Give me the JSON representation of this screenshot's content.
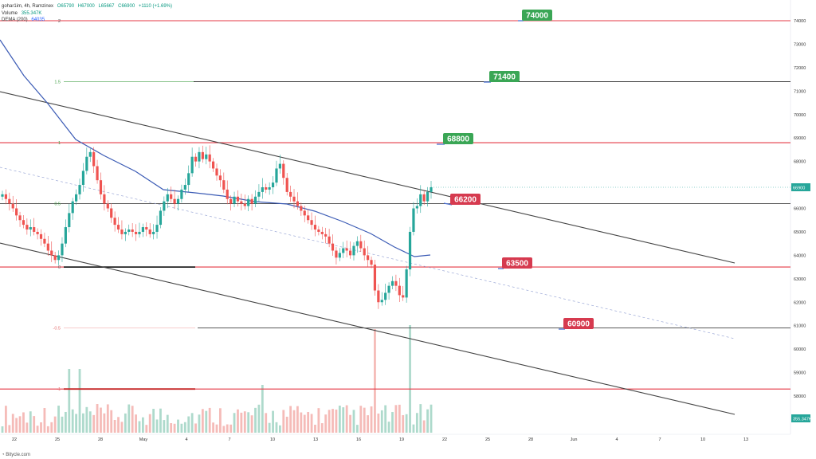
{
  "legend": {
    "symbol": "gohar1im, 4h, Ramzinex",
    "open": "O65790",
    "high": "H67000",
    "low": "L65667",
    "close": "C66900",
    "change": "+1110 (+1.69%)",
    "volume_label": "Volume",
    "volume_value": "355.347K",
    "dema_label": "DEMA (200)",
    "dema_value": "64035"
  },
  "footer": "Bitycle.com",
  "colors": {
    "up": "#26a69a",
    "down": "#ef5350",
    "level_line": "#e53945",
    "dema": "#3b5bb5",
    "channel": "#444444",
    "midline": "#9aa7d6",
    "green_label": "#3aa655",
    "red_label": "#d63a4f"
  },
  "chart_data": {
    "type": "candlestick",
    "timeframe": "4h",
    "ylim": [
      57000,
      74500
    ],
    "y_ticks": [
      "74000",
      "73000",
      "72000",
      "71000",
      "70000",
      "69000",
      "68000",
      "67000",
      "66000",
      "65000",
      "64000",
      "63000",
      "62000",
      "61000",
      "60000",
      "59000",
      "58000"
    ],
    "x_ticks": [
      "22",
      "25",
      "28",
      "May",
      "4",
      "7",
      "10",
      "13",
      "16",
      "19",
      "22",
      "25",
      "28",
      "Jun",
      "4",
      "7",
      "10",
      "13"
    ],
    "current_price_label": "66900",
    "volume_label_axis": "355.347K",
    "fib_levels": [
      {
        "label": "2",
        "value": 74000
      },
      {
        "label": "1.5",
        "value": 71400
      },
      {
        "label": "1",
        "value": 68800
      },
      {
        "label": "0.5",
        "value": 66200
      },
      {
        "label": "0",
        "value": 63500
      },
      {
        "label": "-0.5",
        "value": 60900
      },
      {
        "label": "-1",
        "value": 58300
      }
    ],
    "price_labels": [
      {
        "text": "74000",
        "value": 74000,
        "kind": "green"
      },
      {
        "text": "71400",
        "value": 71400,
        "kind": "green"
      },
      {
        "text": "68800",
        "value": 68800,
        "kind": "green"
      },
      {
        "text": "66200",
        "value": 66200,
        "kind": "red"
      },
      {
        "text": "63500",
        "value": 63500,
        "kind": "red"
      },
      {
        "text": "60900",
        "value": 60900,
        "kind": "red"
      }
    ],
    "candles_close": [
      66600,
      66400,
      66200,
      66000,
      65700,
      65500,
      65300,
      65100,
      65200,
      65000,
      64900,
      64700,
      64500,
      64200,
      64000,
      63800,
      64000,
      64500,
      65200,
      65800,
      66300,
      66600,
      67000,
      67600,
      68200,
      68400,
      67800,
      67200,
      66600,
      66200,
      66000,
      65600,
      65300,
      65100,
      64900,
      65000,
      65100,
      65000,
      64900,
      65000,
      65200,
      65100,
      64900,
      65000,
      65300,
      65900,
      66300,
      66600,
      66400,
      66200,
      66400,
      66800,
      67000,
      67500,
      68200,
      68000,
      68400,
      68100,
      68300,
      68000,
      67700,
      67400,
      67200,
      66800,
      66400,
      66200,
      66500,
      66300,
      66200,
      66100,
      66400,
      66200,
      66500,
      66700,
      66900,
      66800,
      66900,
      67100,
      67700,
      67900,
      67300,
      66700,
      66500,
      66300,
      66100,
      65900,
      65700,
      65500,
      65300,
      65100,
      65000,
      64900,
      64800,
      64500,
      64200,
      63900,
      64100,
      64300,
      64200,
      64000,
      64400,
      64600,
      64300,
      64000,
      63800,
      63600,
      62500,
      62000,
      62100,
      62400,
      62700,
      62900,
      62700,
      62300,
      62200,
      63400,
      65000,
      66000,
      66100,
      66600,
      66300,
      66700,
      66900
    ]
  }
}
